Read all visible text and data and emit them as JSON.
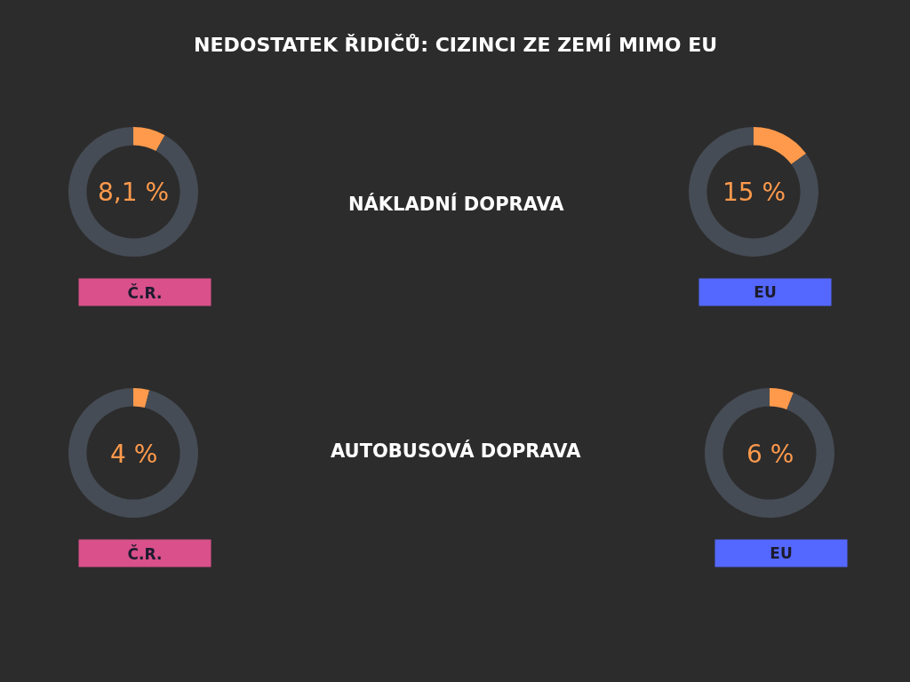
{
  "chart_data": [
    {
      "type": "other",
      "title": "NEDOSTATEK ŘIDIČŮ: CIZINCI ZE ZEMÍ MIMO EU",
      "annotations": [
        "NÁKLADNÍ DOPRAVA",
        "AUTOBUSOVÁ DOPRAVA"
      ]
    },
    {
      "type": "donut",
      "categories": [
        null,
        null
      ],
      "values": [
        8.1,
        91.9
      ],
      "colors": [
        "#ff9a4c",
        "#464c55"
      ],
      "annotations": [
        "8,1 %"
      ],
      "xlabel": "Č.R.",
      "legend": false
    },
    {
      "type": "donut",
      "categories": [
        null,
        null
      ],
      "values": [
        15,
        85
      ],
      "colors": [
        "#ff9a4c",
        "#464c55"
      ],
      "annotations": [
        "15 %"
      ],
      "xlabel": "EU",
      "legend": false
    },
    {
      "type": "donut",
      "categories": [
        null,
        null
      ],
      "values": [
        4,
        96
      ],
      "colors": [
        "#ff9a4c",
        "#464c55"
      ],
      "annotations": [
        "4 %"
      ],
      "xlabel": "Č.R.",
      "legend": false
    },
    {
      "type": "donut",
      "categories": [
        null,
        null
      ],
      "values": [
        6,
        94
      ],
      "colors": [
        "#ff9a4c",
        "#464c55"
      ],
      "annotations": [
        "6 %"
      ],
      "xlabel": "EU",
      "legend": false
    }
  ]
}
